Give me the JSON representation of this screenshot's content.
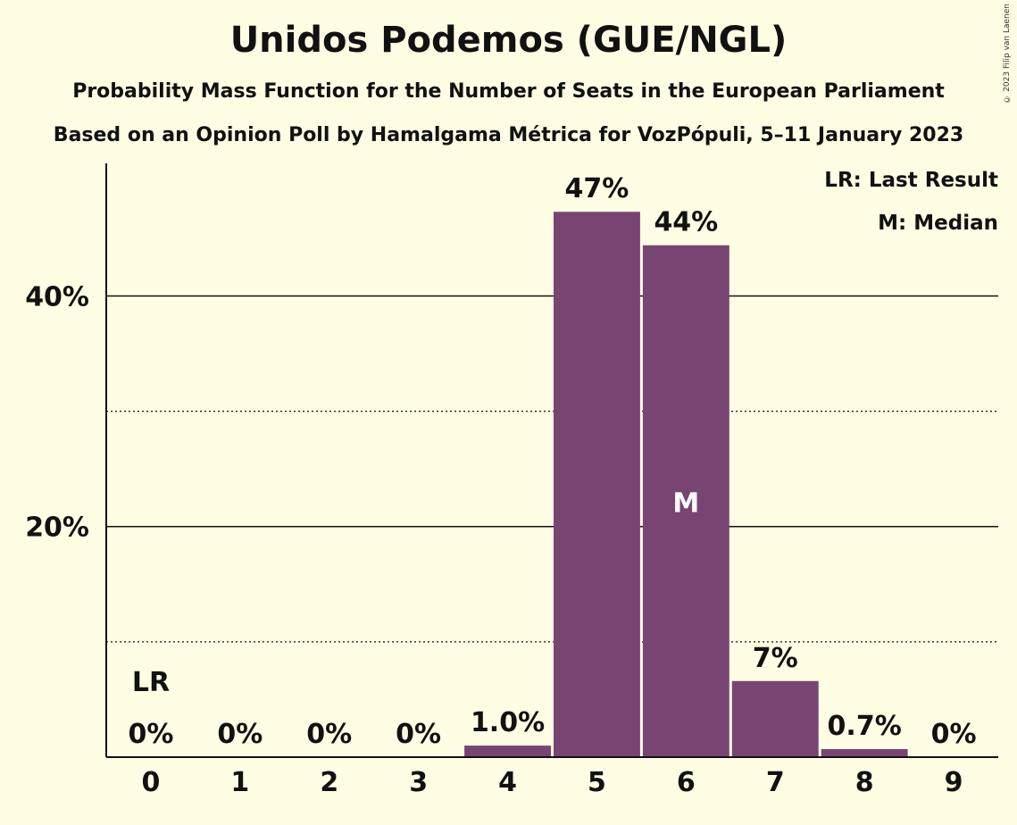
{
  "title": "Unidos Podemos (GUE/NGL)",
  "subtitle_1": "Probability Mass Function for the Number of Seats in the European Parliament",
  "subtitle_2": "Based on an Opinion Poll by Hamalgama Métrica for VozPópuli, 5–11 January 2023",
  "copyright": "© 2023 Filip van Laenen",
  "legend": {
    "last_result": "LR: Last Result",
    "median": "M: Median"
  },
  "colors": {
    "background": "#fffde3",
    "bar": "#784573",
    "axis": "#111111"
  },
  "chart_data": {
    "type": "bar",
    "categories": [
      "0",
      "1",
      "2",
      "3",
      "4",
      "5",
      "6",
      "7",
      "8",
      "9"
    ],
    "values": [
      0,
      0,
      0,
      0,
      1.0,
      47.3,
      44.4,
      6.6,
      0.7,
      0
    ],
    "value_labels": [
      "0%",
      "0%",
      "0%",
      "0%",
      "1.0%",
      "47%",
      "44%",
      "7%",
      "0.7%",
      "0%"
    ],
    "y_ticks": [
      {
        "value": 20,
        "label": "20%",
        "style": "solid"
      },
      {
        "value": 40,
        "label": "40%",
        "style": "solid"
      }
    ],
    "y_minor_gridlines": [
      10,
      30
    ],
    "ylim": [
      0,
      51.5
    ],
    "last_result_category": "0",
    "last_result_marker": "LR",
    "median_category": "6",
    "median_marker": "M",
    "title": "Unidos Podemos (GUE/NGL)",
    "xlabel": "",
    "ylabel": "",
    "legend_position": "top-right"
  }
}
